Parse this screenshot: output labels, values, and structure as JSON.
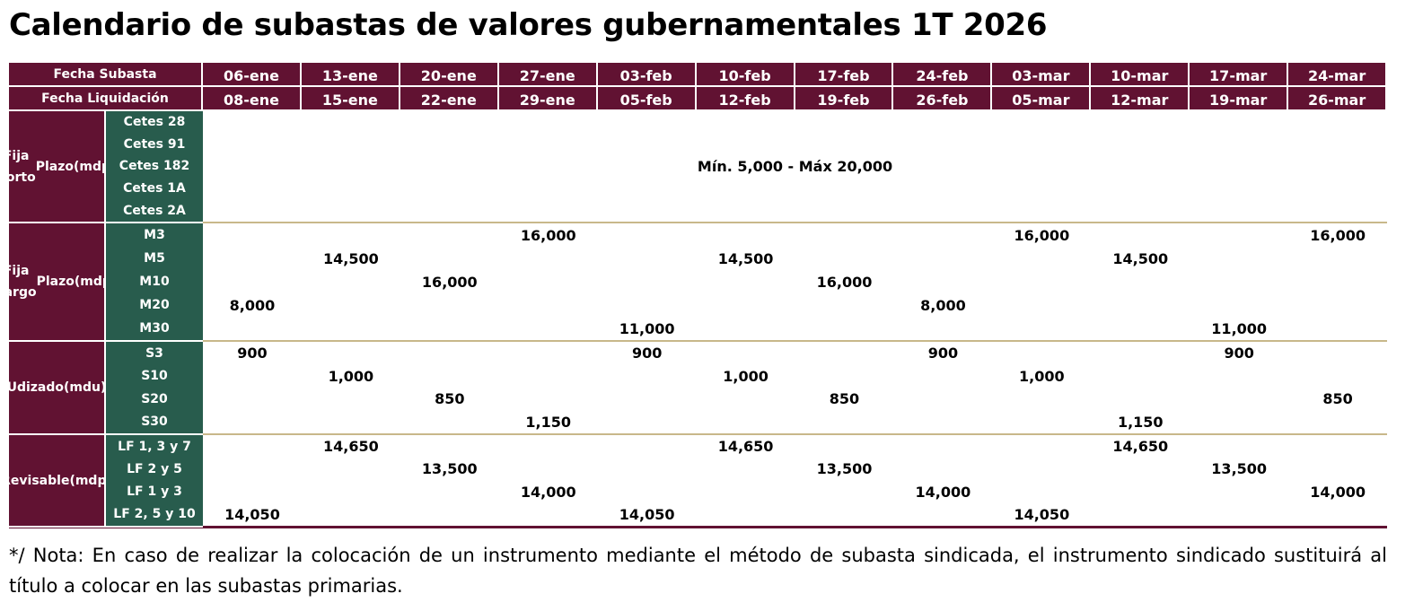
{
  "title": "Calendario de subastas de valores gubernamentales 1T 2026",
  "header": {
    "auction_label": "Fecha Subasta",
    "settlement_label": "Fecha Liquidación",
    "auction_dates": [
      "06-ene",
      "13-ene",
      "20-ene",
      "27-ene",
      "03-feb",
      "10-feb",
      "17-feb",
      "24-feb",
      "03-mar",
      "10-mar",
      "17-mar",
      "24-mar"
    ],
    "settlement_dates": [
      "08-ene",
      "15-ene",
      "22-ene",
      "29-ene",
      "05-feb",
      "12-feb",
      "19-feb",
      "26-feb",
      "05-mar",
      "12-mar",
      "19-mar",
      "26-mar"
    ]
  },
  "sections": [
    {
      "group": [
        "Fija Corto",
        "Plazo",
        "(mdp)"
      ],
      "instruments": [
        "Cetes 28",
        "Cetes 91",
        "Cetes 182",
        "Cetes 1A",
        "Cetes 2A"
      ],
      "span_text": "Mín. 5,000 - Máx 20,000",
      "height": 125
    },
    {
      "group": [
        "Fija Largo",
        "Plazo",
        "(mdp)"
      ],
      "height": 132,
      "rows": [
        {
          "name": "M3",
          "values": [
            "",
            "",
            "",
            "16,000",
            "",
            "",
            "",
            "",
            "16,000",
            "",
            "",
            "16,000"
          ]
        },
        {
          "name": "M5",
          "values": [
            "",
            "14,500",
            "",
            "",
            "",
            "14,500",
            "",
            "",
            "",
            "14,500",
            "",
            ""
          ]
        },
        {
          "name": "M10",
          "values": [
            "",
            "",
            "16,000",
            "",
            "",
            "",
            "16,000",
            "",
            "",
            "",
            "",
            ""
          ]
        },
        {
          "name": "M20",
          "values": [
            "8,000",
            "",
            "",
            "",
            "",
            "",
            "",
            "8,000",
            "",
            "",
            "",
            ""
          ]
        },
        {
          "name": "M30",
          "values": [
            "",
            "",
            "",
            "",
            "11,000",
            "",
            "",
            "",
            "",
            "",
            "11,000",
            ""
          ]
        }
      ]
    },
    {
      "group": [
        "Udizado",
        "(mdu)"
      ],
      "height": 104,
      "rows": [
        {
          "name": "S3",
          "values": [
            "900",
            "",
            "",
            "",
            "900",
            "",
            "",
            "900",
            "",
            "",
            "900",
            ""
          ]
        },
        {
          "name": "S10",
          "values": [
            "",
            "1,000",
            "",
            "",
            "",
            "1,000",
            "",
            "",
            "1,000",
            "",
            "",
            ""
          ]
        },
        {
          "name": "S20",
          "values": [
            "",
            "",
            "850",
            "",
            "",
            "",
            "850",
            "",
            "",
            "",
            "",
            "850"
          ]
        },
        {
          "name": "S30",
          "values": [
            "",
            "",
            "",
            "1,150",
            "",
            "",
            "",
            "",
            "",
            "1,150",
            "",
            ""
          ]
        }
      ]
    },
    {
      "group": [
        "Revisable",
        "(mdp)"
      ],
      "height": 104,
      "rows": [
        {
          "name": "LF 1, 3 y 7",
          "values": [
            "",
            "14,650",
            "",
            "",
            "",
            "14,650",
            "",
            "",
            "",
            "14,650",
            "",
            ""
          ]
        },
        {
          "name": "LF 2 y 5",
          "values": [
            "",
            "",
            "13,500",
            "",
            "",
            "",
            "13,500",
            "",
            "",
            "",
            "13,500",
            ""
          ]
        },
        {
          "name": "LF 1 y 3",
          "values": [
            "",
            "",
            "",
            "14,000",
            "",
            "",
            "",
            "14,000",
            "",
            "",
            "",
            "14,000"
          ]
        },
        {
          "name": "LF 2, 5 y 10",
          "values": [
            "14,050",
            "",
            "",
            "",
            "14,050",
            "",
            "",
            "",
            "14,050",
            "",
            "",
            ""
          ]
        }
      ]
    }
  ],
  "note": "*/ Nota: En caso de realizar la colocación de un instrumento mediante el método de subasta sindicada, el instrumento sindicado sustituirá al título a colocar en las subastas primarias.",
  "colors": {
    "maroon": "#611232",
    "green": "#285c4d",
    "divider": "#c8b88a"
  }
}
